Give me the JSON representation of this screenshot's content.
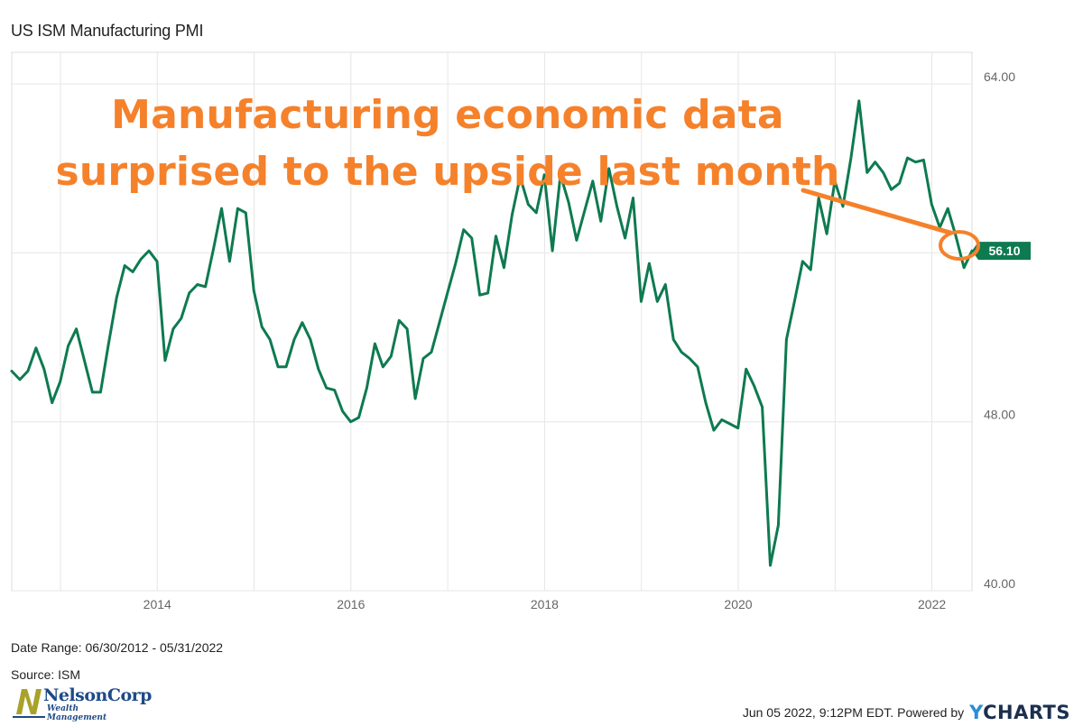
{
  "chart_data": {
    "type": "line",
    "title": "US ISM Manufacturing PMI",
    "annotation": [
      "Manufacturing economic data",
      "surprised to the upside last month"
    ],
    "x_tick_labels": [
      "2014",
      "2016",
      "2018",
      "2020",
      "2022"
    ],
    "y_tick_labels": [
      "40.00",
      "48.00",
      "64.00"
    ],
    "ylim": [
      40,
      65.5
    ],
    "xlim": [
      "2012-06-30",
      "2022-05-31"
    ],
    "grid": true,
    "last_value_label": "56.10",
    "series": [
      {
        "color": "#0e7a50",
        "x": [
          "2012-06",
          "2012-07",
          "2012-08",
          "2012-09",
          "2012-10",
          "2012-11",
          "2012-12",
          "2013-01",
          "2013-02",
          "2013-03",
          "2013-04",
          "2013-05",
          "2013-06",
          "2013-07",
          "2013-08",
          "2013-09",
          "2013-10",
          "2013-11",
          "2013-12",
          "2014-01",
          "2014-02",
          "2014-03",
          "2014-04",
          "2014-05",
          "2014-06",
          "2014-07",
          "2014-08",
          "2014-09",
          "2014-10",
          "2014-11",
          "2014-12",
          "2015-01",
          "2015-02",
          "2015-03",
          "2015-04",
          "2015-05",
          "2015-06",
          "2015-07",
          "2015-08",
          "2015-09",
          "2015-10",
          "2015-11",
          "2015-12",
          "2016-01",
          "2016-02",
          "2016-03",
          "2016-04",
          "2016-05",
          "2016-06",
          "2016-07",
          "2016-08",
          "2016-09",
          "2016-10",
          "2016-11",
          "2016-12",
          "2017-01",
          "2017-02",
          "2017-03",
          "2017-04",
          "2017-05",
          "2017-06",
          "2017-07",
          "2017-08",
          "2017-09",
          "2017-10",
          "2017-11",
          "2017-12",
          "2018-01",
          "2018-02",
          "2018-03",
          "2018-04",
          "2018-05",
          "2018-06",
          "2018-07",
          "2018-08",
          "2018-09",
          "2018-10",
          "2018-11",
          "2018-12",
          "2019-01",
          "2019-02",
          "2019-03",
          "2019-04",
          "2019-05",
          "2019-06",
          "2019-07",
          "2019-08",
          "2019-09",
          "2019-10",
          "2019-11",
          "2019-12",
          "2020-01",
          "2020-02",
          "2020-03",
          "2020-04",
          "2020-05",
          "2020-06",
          "2020-07",
          "2020-08",
          "2020-09",
          "2020-10",
          "2020-11",
          "2020-12",
          "2021-01",
          "2021-02",
          "2021-03",
          "2021-04",
          "2021-05",
          "2021-06",
          "2021-07",
          "2021-08",
          "2021-09",
          "2021-10",
          "2021-11",
          "2021-12",
          "2022-01",
          "2022-02",
          "2022-03",
          "2022-04",
          "2022-05"
        ],
        "values": [
          50.4,
          50.0,
          50.4,
          51.5,
          50.5,
          48.9,
          49.9,
          51.6,
          52.4,
          50.9,
          49.4,
          49.4,
          51.7,
          53.9,
          55.4,
          55.1,
          55.7,
          56.1,
          55.6,
          50.9,
          52.4,
          52.9,
          54.1,
          54.5,
          54.4,
          56.2,
          58.1,
          55.6,
          58.1,
          57.9,
          54.2,
          52.5,
          51.9,
          50.6,
          50.6,
          51.9,
          52.7,
          51.9,
          50.5,
          49.6,
          49.5,
          48.5,
          48.0,
          48.2,
          49.6,
          51.7,
          50.6,
          51.1,
          52.8,
          52.4,
          49.1,
          51.0,
          51.3,
          52.7,
          54.1,
          55.5,
          57.1,
          56.7,
          54.0,
          54.1,
          56.8,
          55.3,
          57.8,
          59.6,
          58.3,
          57.9,
          59.7,
          56.1,
          59.7,
          58.4,
          56.6,
          58.0,
          59.4,
          57.5,
          60.0,
          58.2,
          56.7,
          58.6,
          53.7,
          55.5,
          53.7,
          54.5,
          51.9,
          51.3,
          51.0,
          50.6,
          48.9,
          47.6,
          48.1,
          47.9,
          47.7,
          50.5,
          49.7,
          48.7,
          41.2,
          43.1,
          51.9,
          53.7,
          55.6,
          55.2,
          58.6,
          56.9,
          59.4,
          58.2,
          60.5,
          63.2,
          59.8,
          60.3,
          59.8,
          59.0,
          59.3,
          60.5,
          60.3,
          60.4,
          58.3,
          57.2,
          58.1,
          56.8,
          55.3,
          56.1
        ]
      }
    ]
  },
  "footer": {
    "date_range": "Date Range: 06/30/2012 - 05/31/2022",
    "source": "Source: ISM",
    "timestamp": "Jun 05 2022, 9:12PM EDT.",
    "powered_by": "Powered by",
    "brand_y": "Y",
    "brand_rest": "CHARTS"
  },
  "logo": {
    "name": "NelsonCorp",
    "subtitle": "Wealth Management",
    "color": "#1e4a86",
    "mark_color": "#a8a22a"
  },
  "colors": {
    "line": "#0e7a50",
    "annotation": "#f5812b",
    "grid": "#e6e6e6"
  }
}
